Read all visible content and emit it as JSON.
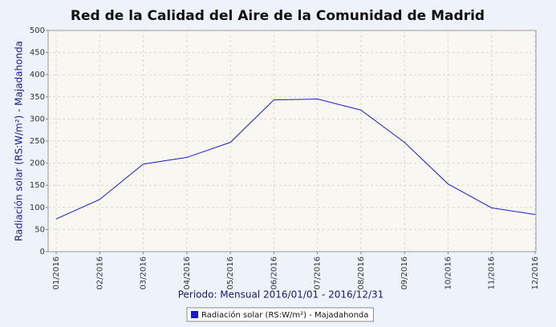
{
  "chart_data": {
    "type": "line",
    "title": "Red de la Calidad del Aire de la Comunidad de Madrid",
    "x_label": "Periodo: Mensual 2016/01/01 - 2016/12/31",
    "y_label": "Radiación solar (RS:W/m²) - Majadahonda",
    "categories": [
      "01/2016",
      "02/2016",
      "03/2016",
      "04/2016",
      "05/2016",
      "06/2016",
      "07/2016",
      "08/2016",
      "09/2016",
      "10/2016",
      "11/2016",
      "12/2016"
    ],
    "series": [
      {
        "name": "Radiación solar (RS:W/m²) - Majadahonda",
        "color": "#1a1acc",
        "values": [
          74,
          118,
          198,
          213,
          247,
          343,
          345,
          320,
          247,
          153,
          99,
          84
        ]
      }
    ],
    "ylim": [
      0,
      500
    ],
    "yticks": [
      0,
      50,
      100,
      150,
      200,
      250,
      300,
      350,
      400,
      450,
      500
    ],
    "grid": true,
    "legend": "bottom"
  }
}
